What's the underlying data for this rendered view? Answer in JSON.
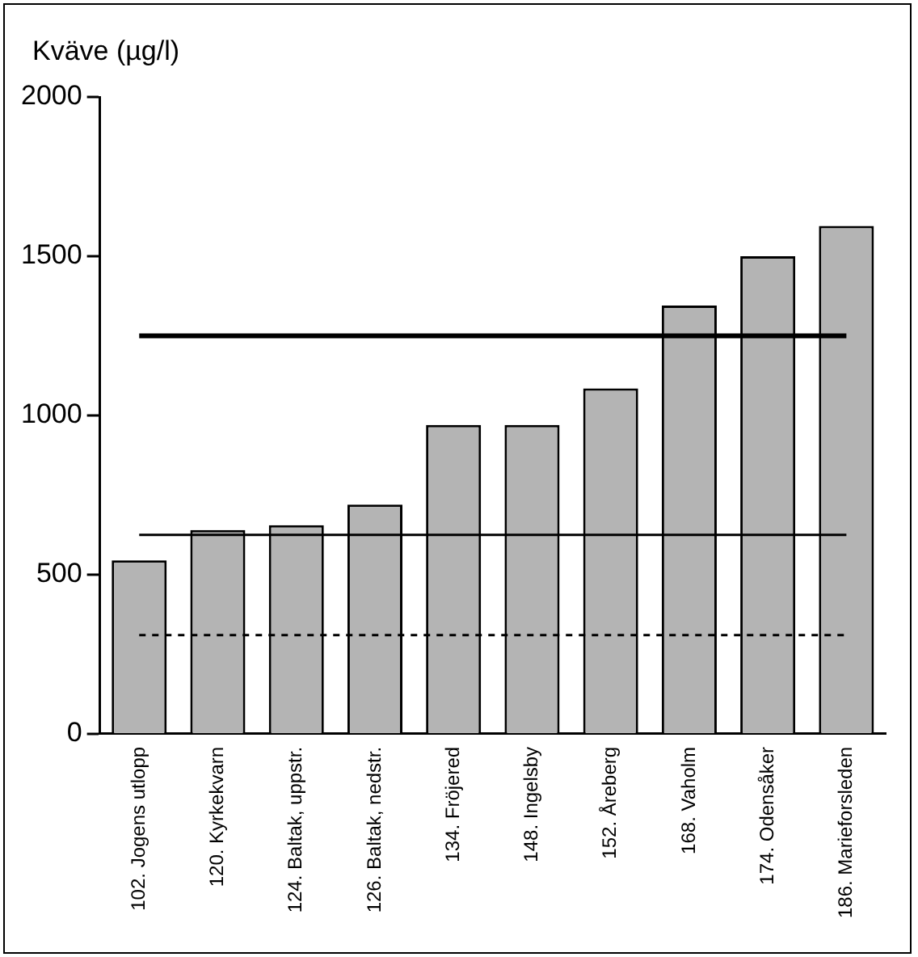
{
  "chart_data": {
    "type": "bar",
    "ylabel": "Kväve (µg/l)",
    "categories": [
      "102. Jogens utlopp",
      "120. Kyrkekvarn",
      "124. Baltak, uppstr.",
      "126. Baltak, nedstr.",
      "134. Fröjered",
      "148. Ingelsby",
      "152. Åreberg",
      "168. Vaholm",
      "174. Odensåker",
      "186. Marieforsleden"
    ],
    "values": [
      545,
      640,
      655,
      720,
      970,
      970,
      1085,
      1345,
      1500,
      1595
    ],
    "color": "#b4b4b4",
    "ylim": [
      0,
      2000
    ],
    "yticks": [
      0,
      500,
      1000,
      1500,
      2000
    ],
    "grid": false,
    "legend": false,
    "ref_lines": [
      {
        "axis": "y",
        "value": 1250,
        "color": "#000000",
        "line_style": "solid"
      },
      {
        "axis": "y",
        "value": 625,
        "color": "#000000",
        "line_style": "solid"
      },
      {
        "axis": "y",
        "value": 310,
        "color": "#000000",
        "line_style": "dashed"
      }
    ]
  }
}
